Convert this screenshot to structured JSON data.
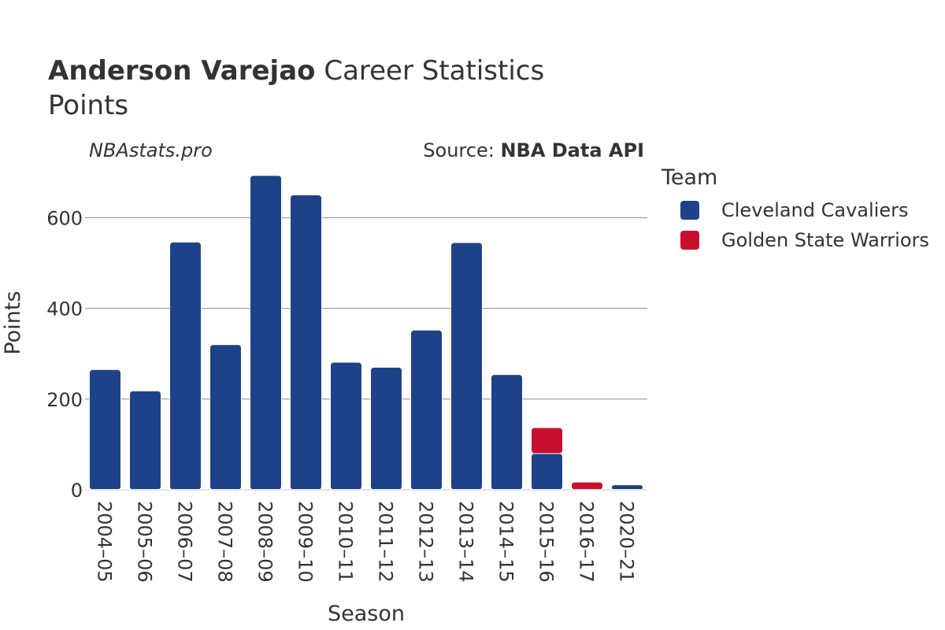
{
  "header": {
    "title_bold": "Anderson Varejao",
    "title_rest": " Career Statistics",
    "subtitle": "Points",
    "watermark": "NBAstats.pro",
    "source_label": "Source: ",
    "source_value": "NBA Data API"
  },
  "legend": {
    "title": "Team",
    "items": [
      {
        "label": "Cleveland Cavaliers",
        "color": "#1d428a"
      },
      {
        "label": "Golden State Warriors",
        "color": "#c8102e"
      }
    ]
  },
  "chart_data": {
    "type": "bar",
    "stacked": true,
    "xlabel": "Season",
    "ylabel": "Points",
    "ylim": [
      0,
      700
    ],
    "yticks": [
      0,
      200,
      400,
      600
    ],
    "grid": true,
    "legend_position": "right",
    "categories": [
      "2004–05",
      "2005–06",
      "2006–07",
      "2007–08",
      "2008–09",
      "2009–10",
      "2010–11",
      "2011–12",
      "2012–13",
      "2013–14",
      "2014–15",
      "2015–16",
      "2016–17",
      "2020–21"
    ],
    "series": [
      {
        "name": "Cleveland Cavaliers",
        "color": "#1d428a",
        "values": [
          265,
          218,
          546,
          320,
          693,
          650,
          281,
          270,
          352,
          545,
          254,
          80,
          0,
          11
        ]
      },
      {
        "name": "Golden State Warriors",
        "color": "#c8102e",
        "values": [
          0,
          0,
          0,
          0,
          0,
          0,
          0,
          0,
          0,
          0,
          0,
          57,
          17,
          0
        ]
      }
    ]
  }
}
